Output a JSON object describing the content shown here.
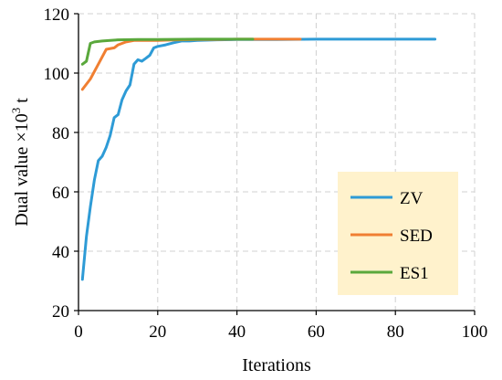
{
  "chart_data": {
    "type": "line",
    "title": "",
    "xlabel": "Iterations",
    "ylabel_main": "Dual value ×10",
    "ylabel_sup": "3",
    "ylabel_unit": " t",
    "xlim": [
      0,
      100
    ],
    "ylim": [
      20,
      120
    ],
    "x_ticks": [
      0,
      20,
      40,
      60,
      80,
      100
    ],
    "y_ticks": [
      20,
      40,
      60,
      80,
      100,
      120
    ],
    "grid": true,
    "legend_position": "bottom-right",
    "legend_background": "#FFF2CC",
    "series": [
      {
        "name": "ZV",
        "color": "#2E9BD6",
        "points": [
          [
            1,
            30.5
          ],
          [
            2,
            45
          ],
          [
            3,
            55
          ],
          [
            4,
            64
          ],
          [
            5,
            70.5
          ],
          [
            6,
            72
          ],
          [
            7,
            75
          ],
          [
            8,
            79
          ],
          [
            9,
            85
          ],
          [
            10,
            86
          ],
          [
            11,
            91
          ],
          [
            12,
            94
          ],
          [
            13,
            96
          ],
          [
            14,
            103
          ],
          [
            15,
            104.5
          ],
          [
            16,
            104
          ],
          [
            17,
            105
          ],
          [
            18,
            106
          ],
          [
            19,
            108.5
          ],
          [
            20,
            109
          ],
          [
            22,
            109.5
          ],
          [
            24,
            110.2
          ],
          [
            26,
            110.8
          ],
          [
            28,
            110.8
          ],
          [
            30,
            111
          ],
          [
            35,
            111.2
          ],
          [
            40,
            111.3
          ],
          [
            50,
            111.3
          ],
          [
            60,
            111.4
          ],
          [
            70,
            111.4
          ],
          [
            80,
            111.4
          ],
          [
            90,
            111.4
          ]
        ]
      },
      {
        "name": "SED",
        "color": "#F07F32",
        "points": [
          [
            1,
            94.5
          ],
          [
            3,
            98
          ],
          [
            5,
            103
          ],
          [
            7,
            108
          ],
          [
            9,
            108.5
          ],
          [
            10,
            109.5
          ],
          [
            12,
            110.5
          ],
          [
            14,
            111
          ],
          [
            16,
            111
          ],
          [
            20,
            111
          ],
          [
            25,
            111.2
          ],
          [
            30,
            111.3
          ],
          [
            35,
            111.3
          ],
          [
            40,
            111.4
          ],
          [
            45,
            111.4
          ],
          [
            50,
            111.4
          ],
          [
            56,
            111.4
          ]
        ]
      },
      {
        "name": "ES1",
        "color": "#5AA83C",
        "points": [
          [
            1,
            103
          ],
          [
            2,
            104
          ],
          [
            3,
            110
          ],
          [
            4,
            110.5
          ],
          [
            6,
            110.8
          ],
          [
            8,
            111
          ],
          [
            10,
            111.2
          ],
          [
            15,
            111.3
          ],
          [
            20,
            111.3
          ],
          [
            30,
            111.4
          ],
          [
            40,
            111.4
          ],
          [
            44,
            111.4
          ]
        ]
      }
    ]
  }
}
